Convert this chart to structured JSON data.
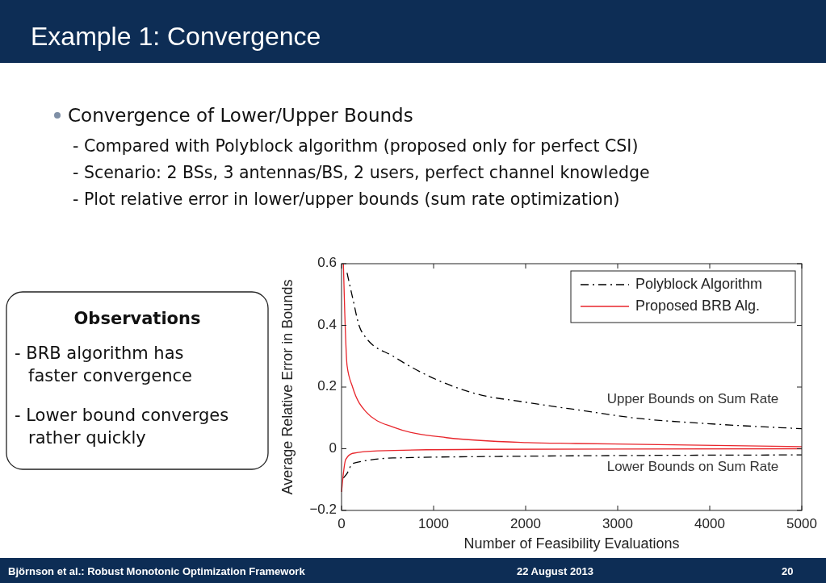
{
  "chart_data": {
    "type": "line",
    "title": "Example 1: Convergence",
    "subtitle": "Convergence of Lower/Upper Bounds",
    "xlabel": "Number of Feasibility Evaluations",
    "ylabel": "Average Relative Error in Bounds",
    "xlim": [
      0,
      5000
    ],
    "xticks": [
      0,
      1000,
      2000,
      3000,
      4000,
      5000
    ],
    "ylim": [
      -0.2,
      0.6
    ],
    "yticks": [
      {
        "value": -0.2,
        "label": "−0.2"
      },
      0,
      0.2,
      0.4,
      0.6
    ],
    "legend": "top right",
    "grid": false,
    "series": [
      {
        "name": "Polyblock Algorithm",
        "color": "#000000",
        "line_style": "dashed",
        "x": [
          60,
          120,
          190,
          265,
          560,
          850,
          1440,
          2020,
          2540,
          3300,
          3890,
          5000
        ],
        "values": [
          0.57,
          0.49,
          0.4,
          0.36,
          0.3,
          0.25,
          0.18,
          0.15,
          0.127,
          0.096,
          0.083,
          0.065
        ]
      },
      {
        "name": "Proposed BRB Alg.",
        "color": "#e8262c",
        "line_style": "solid",
        "x": [
          20,
          35,
          60,
          120,
          265,
          560,
          1140,
          2020,
          2540,
          5000
        ],
        "values": [
          0.6,
          0.44,
          0.27,
          0.2,
          0.12,
          0.07,
          0.036,
          0.02,
          0.017,
          0.007
        ]
      },
      {
        "color": "#000000",
        "line_style": "dashed",
        "x": [
          20,
          60,
          120,
          560,
          1700,
          5000
        ],
        "values": [
          -0.095,
          -0.08,
          -0.048,
          -0.03,
          -0.025,
          -0.02
        ]
      },
      {
        "color": "#e8262c",
        "line_style": "solid",
        "x": [
          0,
          45,
          120,
          390,
          1500,
          5000
        ],
        "values": [
          -0.14,
          -0.035,
          -0.015,
          -0.007,
          -0.002,
          0
        ]
      }
    ],
    "annotations": [
      "- Compared with Polyblock algorithm (proposed only for perfect CSI)",
      "- Scenario: 2 BSs, 3 antennas/BS, 2 users, perfect channel knowledge",
      "- Plot relative error in lower/upper bounds (sum rate optimization)",
      "Observations",
      "- BRB algorithm has faster convergence",
      "- Lower bound converges rather quickly",
      "Björnson et al.: Robust Monotonic Optimization Framework",
      "22 August 2013",
      "20",
      "Upper Bounds on Sum Rate",
      "Lower Bounds on Sum Rate"
    ]
  }
}
